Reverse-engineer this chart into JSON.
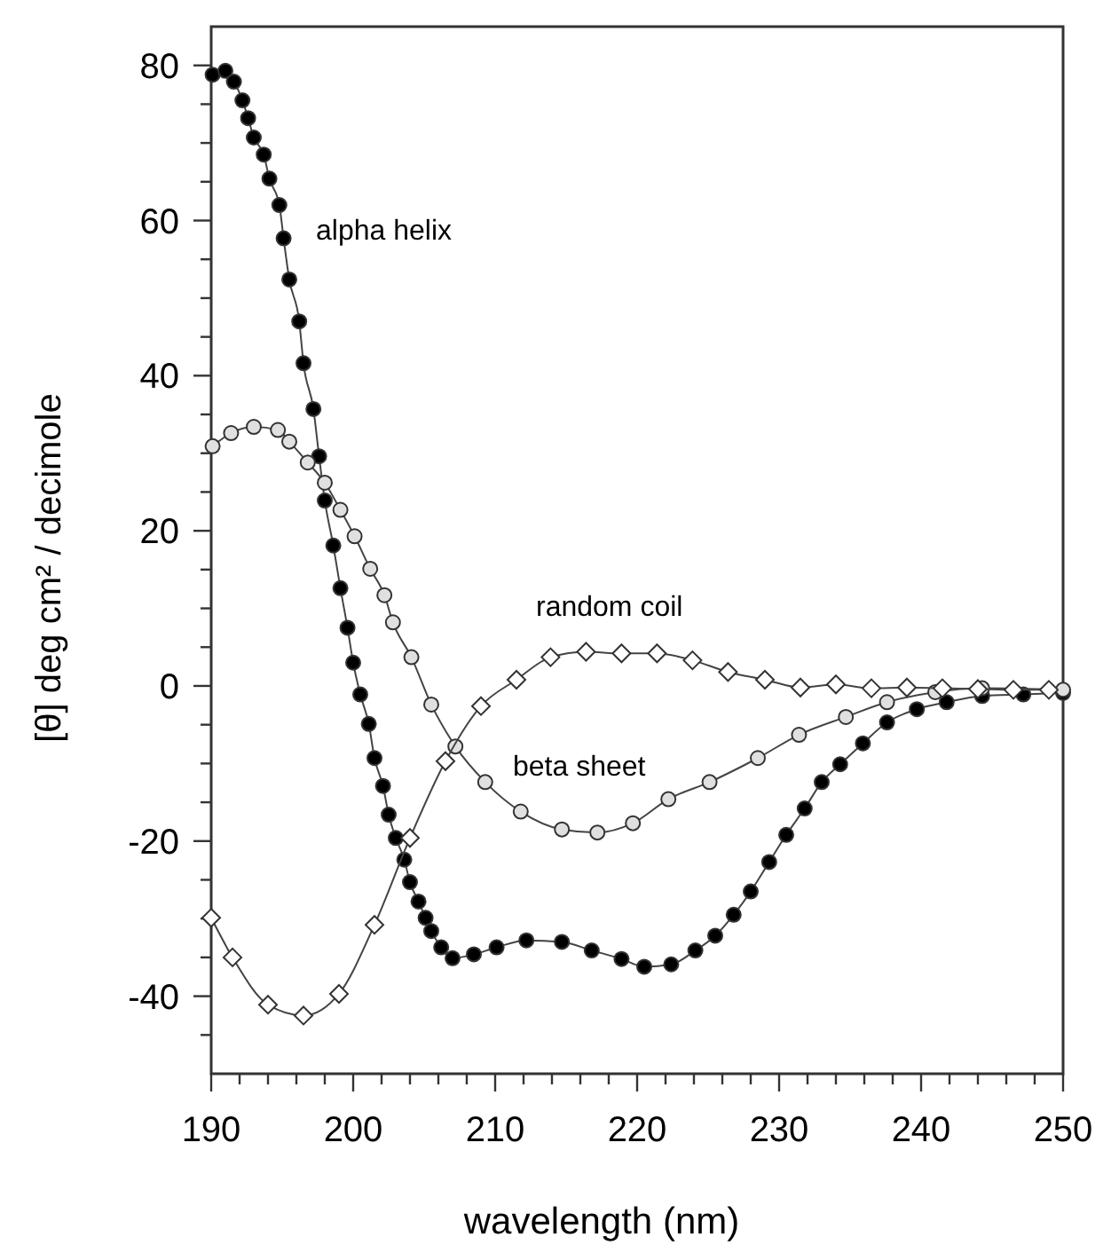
{
  "chart_data": {
    "type": "line",
    "xlabel": "wavelength (nm)",
    "ylabel": "[θ] deg cm² / decimole",
    "xlim": [
      190,
      250
    ],
    "ylim": [
      -50,
      85
    ],
    "xticks": [
      190,
      {
        "value": 192,
        "label": null
      },
      {
        "value": 194,
        "label": null
      },
      {
        "value": 196,
        "label": null
      },
      {
        "value": 198,
        "label": null
      },
      200,
      {
        "value": 202,
        "label": null
      },
      {
        "value": 204,
        "label": null
      },
      {
        "value": 206,
        "label": null
      },
      {
        "value": 208,
        "label": null
      },
      210,
      {
        "value": 212,
        "label": null
      },
      {
        "value": 214,
        "label": null
      },
      {
        "value": 216,
        "label": null
      },
      {
        "value": 218,
        "label": null
      },
      220,
      {
        "value": 222,
        "label": null
      },
      {
        "value": 224,
        "label": null
      },
      {
        "value": 226,
        "label": null
      },
      {
        "value": 228,
        "label": null
      },
      230,
      {
        "value": 232,
        "label": null
      },
      {
        "value": 234,
        "label": null
      },
      {
        "value": 236,
        "label": null
      },
      {
        "value": 238,
        "label": null
      },
      240,
      {
        "value": 242,
        "label": null
      },
      {
        "value": 244,
        "label": null
      },
      {
        "value": 246,
        "label": null
      },
      {
        "value": 248,
        "label": null
      },
      250
    ],
    "yticks": [
      {
        "value": -45,
        "label": null
      },
      -40,
      {
        "value": -35,
        "label": null
      },
      {
        "value": -30,
        "label": null
      },
      {
        "value": -25,
        "label": null
      },
      -20,
      {
        "value": -15,
        "label": null
      },
      {
        "value": -10,
        "label": null
      },
      {
        "value": -5,
        "label": null
      },
      0,
      {
        "value": 5,
        "label": null
      },
      {
        "value": 10,
        "label": null
      },
      {
        "value": 15,
        "label": null
      },
      20,
      {
        "value": 25,
        "label": null
      },
      {
        "value": 30,
        "label": null
      },
      {
        "value": 35,
        "label": null
      },
      40,
      {
        "value": 45,
        "label": null
      },
      {
        "value": 50,
        "label": null
      },
      {
        "value": 55,
        "label": null
      },
      60,
      {
        "value": 65,
        "label": null
      },
      {
        "value": 70,
        "label": null
      },
      {
        "value": 75,
        "label": null
      },
      80
    ],
    "grid": false,
    "line_style": "solid",
    "series": [
      {
        "name": "alpha helix",
        "color": "#000000",
        "marker": "circle",
        "x": [
          190.1,
          191,
          191.6,
          192.2,
          192.6,
          193,
          193.7,
          194.1,
          194.8,
          195.1,
          195.5,
          196.2,
          196.5,
          197.2,
          197.6,
          198,
          198.6,
          199.1,
          199.6,
          200,
          200.5,
          201.1,
          201.5,
          202.1,
          202.5,
          203,
          203.6,
          204,
          204.6,
          205.1,
          205.5,
          206.2,
          207,
          208.5,
          210.1,
          212.2,
          214.7,
          216.8,
          218.9,
          220.5,
          222.4,
          224.1,
          225.5,
          226.8,
          228,
          229.3,
          230.5,
          231.8,
          233,
          234.3,
          235.9,
          237.6,
          239.7,
          241.8,
          244.3,
          247.2,
          250
        ],
        "values": [
          78.8,
          79.3,
          77.9,
          75.5,
          73.2,
          70.7,
          68.5,
          65.4,
          62,
          57.7,
          52.4,
          47,
          41.6,
          35.7,
          29.6,
          23.9,
          18.1,
          12.6,
          7.5,
          3,
          -1.1,
          -4.9,
          -9.3,
          -12.9,
          -16.6,
          -19.6,
          -22.4,
          -25.3,
          -27.8,
          -29.9,
          -31.6,
          -33.7,
          -35.1,
          -34.6,
          -33.7,
          -32.8,
          -33,
          -34.1,
          -35.2,
          -36.2,
          -35.9,
          -34.1,
          -32.2,
          -29.5,
          -26.5,
          -22.7,
          -19.2,
          -15.8,
          -12.4,
          -10.1,
          -7.4,
          -4.7,
          -3,
          -2.1,
          -1.3,
          -1.1,
          -0.9
        ]
      },
      {
        "name": "beta sheet",
        "color": "#e0e0e0",
        "marker": "circle",
        "x": [
          190.1,
          191.4,
          193,
          194.7,
          195.5,
          196.8,
          198,
          199.1,
          200.1,
          201.2,
          202.2,
          202.8,
          204.1,
          205.5,
          207.2,
          209.3,
          211.8,
          214.7,
          217.2,
          219.7,
          222.2,
          225.1,
          228.5,
          231.4,
          234.7,
          237.6,
          241,
          244.3,
          250
        ],
        "values": [
          30.9,
          32.6,
          33.4,
          33,
          31.5,
          28.8,
          26.2,
          22.7,
          19.3,
          15.1,
          11.7,
          8.2,
          3.7,
          -2.4,
          -7.8,
          -12.4,
          -16.2,
          -18.5,
          -18.9,
          -17.7,
          -14.6,
          -12.4,
          -9.3,
          -6.3,
          -4,
          -2.1,
          -0.8,
          -0.3,
          -0.5
        ]
      },
      {
        "name": "random coil",
        "color": "#ffffff",
        "marker": "diamond",
        "x": [
          190,
          191.5,
          194,
          196.5,
          199,
          201.5,
          204,
          206.5,
          209,
          211.5,
          213.9,
          216.4,
          218.9,
          221.4,
          223.9,
          226.4,
          229,
          231.5,
          234,
          236.5,
          239,
          241.5,
          244,
          246.5,
          249
        ],
        "values": [
          -29.9,
          -35,
          -41.1,
          -42.5,
          -39.7,
          -30.8,
          -19.6,
          -9.7,
          -2.6,
          0.8,
          3.7,
          4.4,
          4.2,
          4.2,
          3.3,
          1.8,
          0.8,
          -0.2,
          0.2,
          -0.3,
          -0.2,
          -0.3,
          -0.4,
          -0.5,
          -0.5
        ]
      }
    ]
  }
}
